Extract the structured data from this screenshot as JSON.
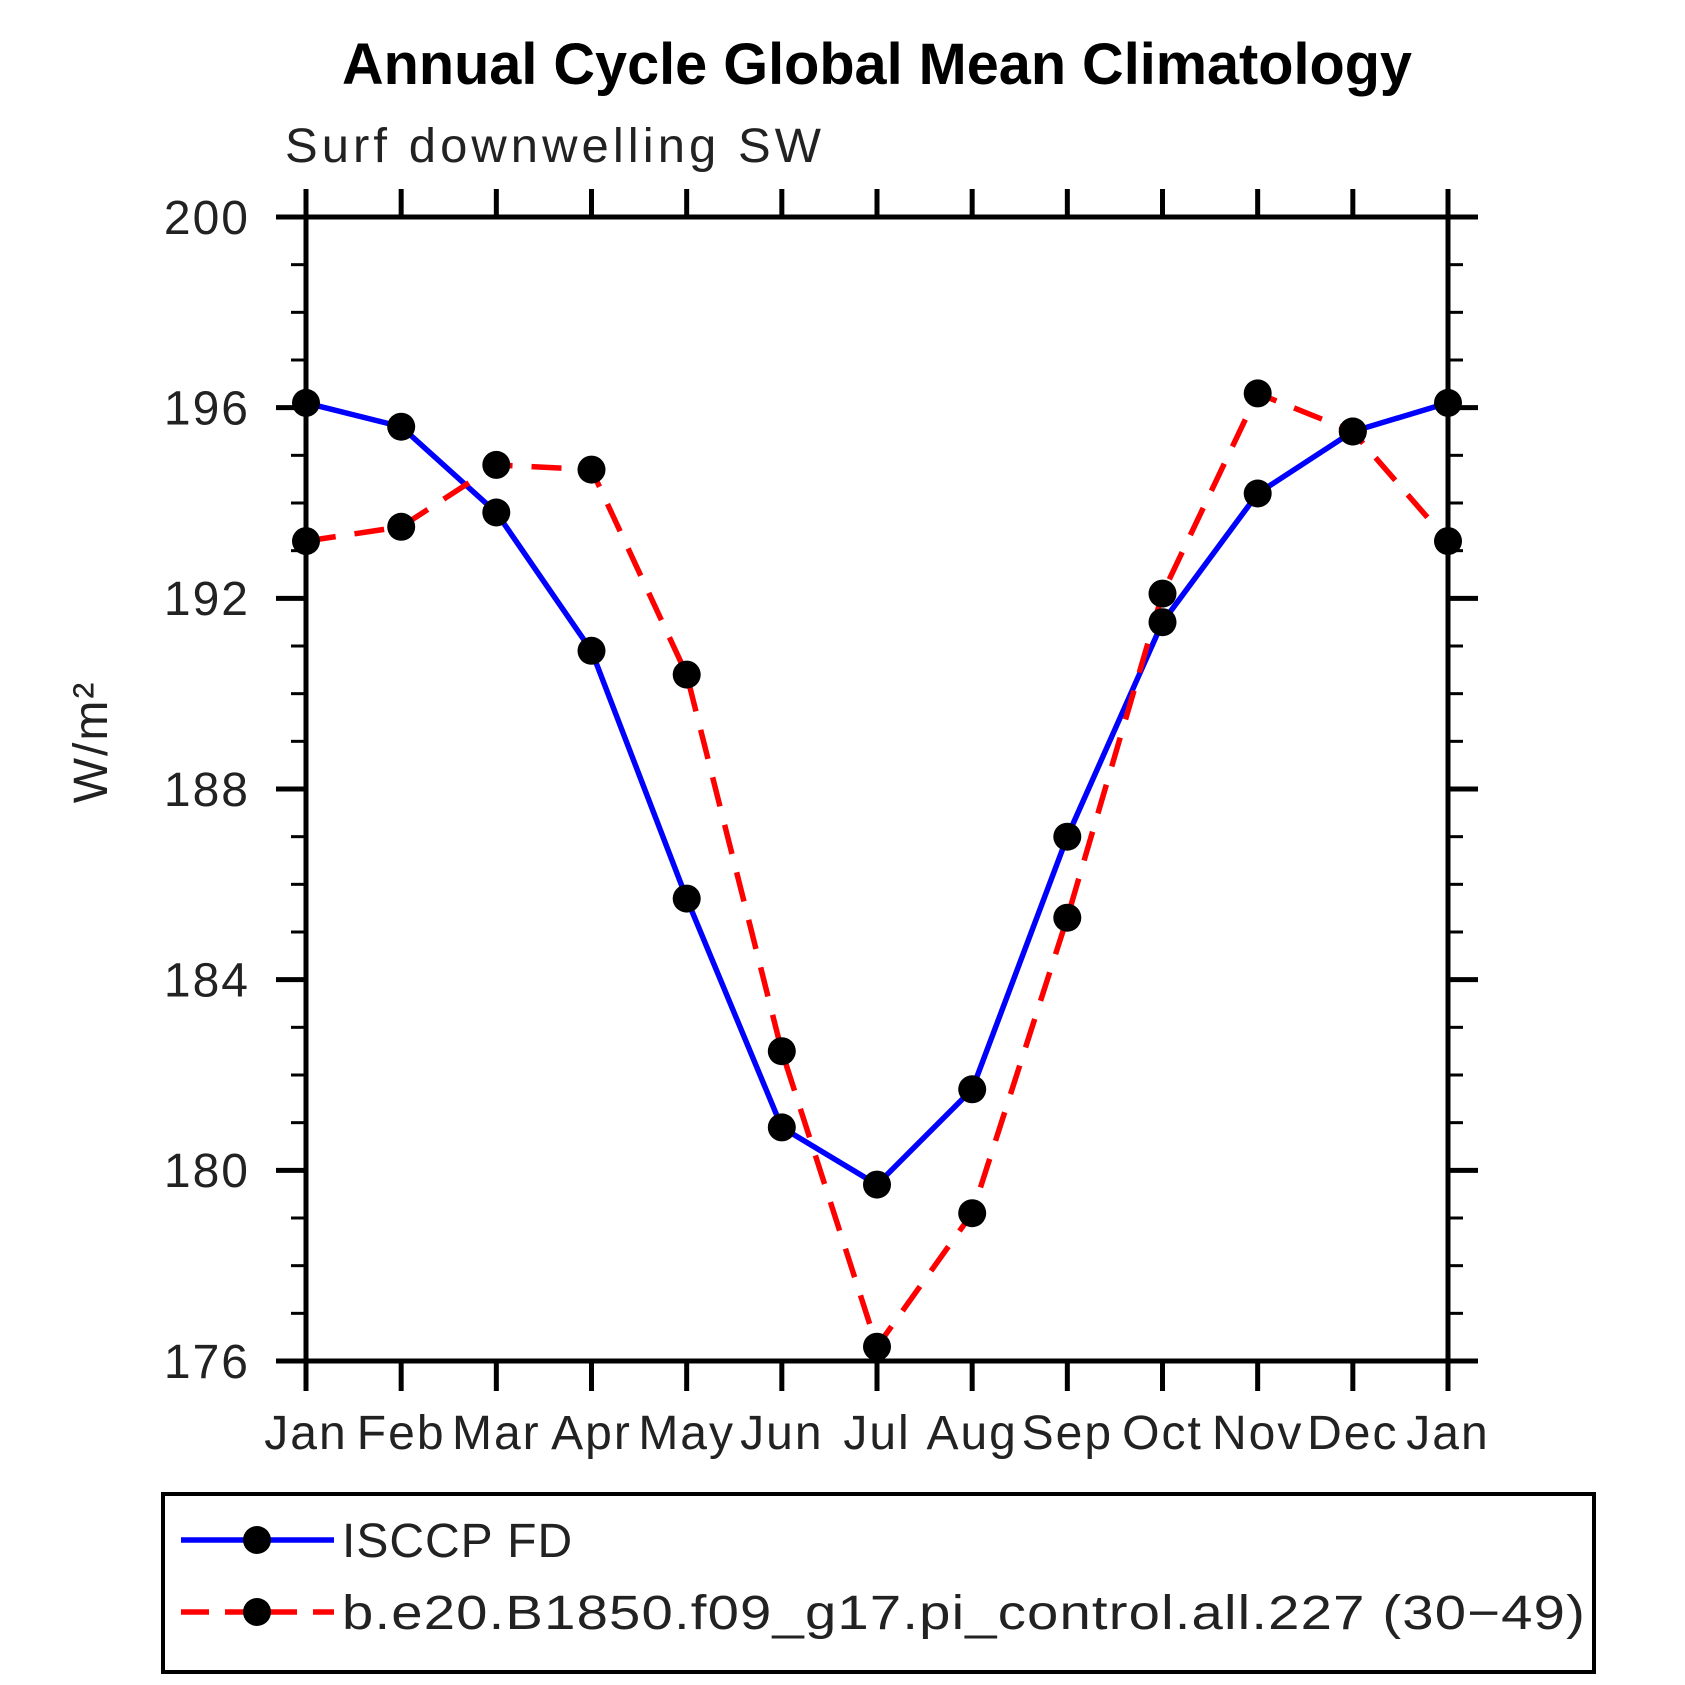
{
  "page": {
    "background_color": "#ffffff"
  },
  "chart_data": {
    "type": "line",
    "title": "Annual Cycle Global Mean Climatology",
    "subtitle": "Surf downwelling SW",
    "xlabel": "",
    "ylabel": "W/m²",
    "categories": [
      "Jan",
      "Feb",
      "Mar",
      "Apr",
      "May",
      "Jun",
      "Jul",
      "Aug",
      "Sep",
      "Oct",
      "Nov",
      "Dec",
      "Jan"
    ],
    "ylim": [
      176,
      200
    ],
    "ytick_major_step": 4,
    "ytick_minor_step": 1,
    "ytick_labels": [
      "176",
      "180",
      "184",
      "188",
      "192",
      "196",
      "200"
    ],
    "grid": "off",
    "legend_position": "bottom-box",
    "axis_color": "#000000",
    "marker_color": "#000000",
    "marker_shape": "circle",
    "series": [
      {
        "name": "ISCCP FD",
        "color": "#0000ff",
        "line_style": "solid",
        "values": [
          196.1,
          195.6,
          193.8,
          190.9,
          185.7,
          180.9,
          179.7,
          181.7,
          187.0,
          191.5,
          194.2,
          195.5,
          196.1
        ]
      },
      {
        "name": "b.e20.B1850.f09_g17.pi_control.all.227 (30−49)",
        "color": "#ff0000",
        "line_style": "dashed",
        "values": [
          193.2,
          193.5,
          194.8,
          194.7,
          190.4,
          182.5,
          176.3,
          179.1,
          185.3,
          192.1,
          196.3,
          195.5,
          193.2
        ]
      }
    ]
  }
}
